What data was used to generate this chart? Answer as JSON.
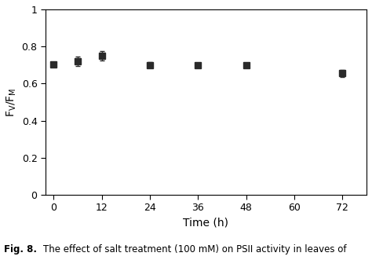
{
  "x": [
    0,
    6,
    12,
    24,
    36,
    48,
    72
  ],
  "y": [
    0.705,
    0.72,
    0.75,
    0.7,
    0.7,
    0.7,
    0.655
  ],
  "yerr": [
    0.01,
    0.025,
    0.025,
    0.015,
    0.012,
    0.012,
    0.02
  ],
  "xlabel": "Time (h)",
  "ylabel": "F$_\\mathrm{V}$/F$_\\mathrm{M}$",
  "xlim": [
    -2,
    78
  ],
  "ylim": [
    0,
    1.0
  ],
  "xticks": [
    0,
    12,
    24,
    36,
    48,
    60,
    72
  ],
  "yticks": [
    0,
    0.2,
    0.4,
    0.6,
    0.8,
    1.0
  ],
  "line_color": "#333333",
  "marker_color": "#2a2a2a",
  "marker": "s",
  "markersize": 5.5,
  "linewidth": 1.0,
  "capsize": 2.5,
  "elinewidth": 0.9,
  "figsize": [
    4.74,
    3.31
  ],
  "dpi": 100,
  "caption_bold": "Fig. 8.",
  "caption_normal": "    The effect of salt treatment (100 mΜ) on PSII activity in leaves of",
  "caption_fontsize": 8.5
}
